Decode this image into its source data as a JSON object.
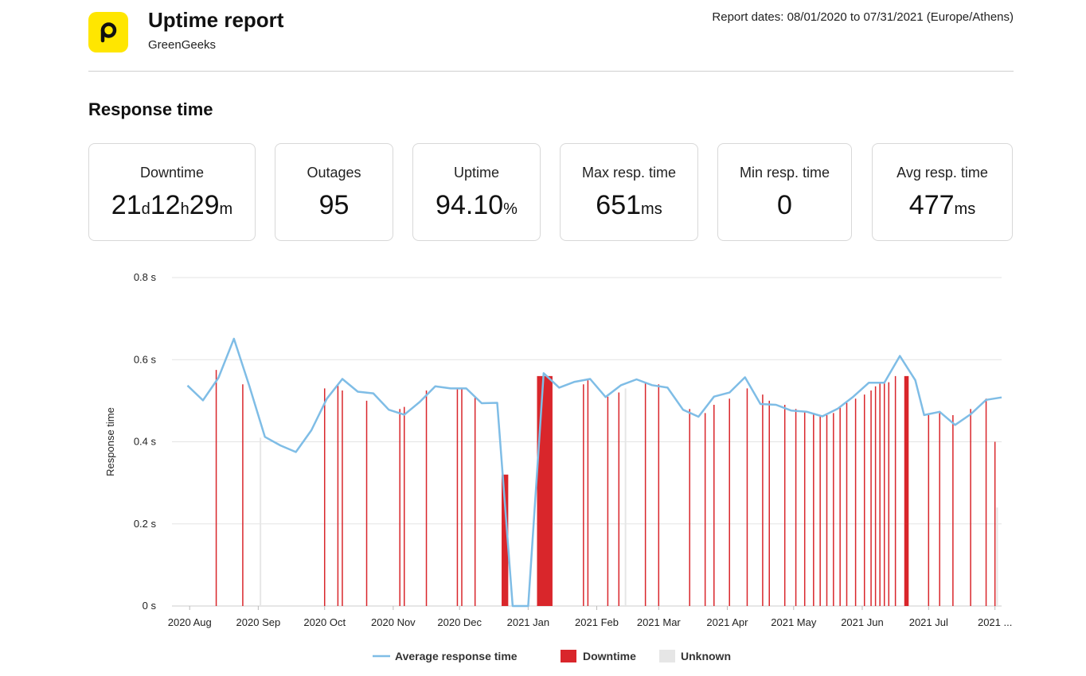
{
  "header": {
    "title": "Uptime report",
    "subtitle": "GreenGeeks",
    "report_dates": "Report dates: 08/01/2020 to 07/31/2021 (Europe/Athens)"
  },
  "section_title": "Response time",
  "logo_icon": "p-logo-icon",
  "colors": {
    "logo_bg": "#ffe600",
    "line": "#7fbde6",
    "downtime": "#d9262b",
    "unknown": "#e6e6e6",
    "grid": "#e3e3e3"
  },
  "stats": {
    "downtime": {
      "label": "Downtime",
      "days": "21",
      "d_unit": "d",
      "hours": "12",
      "h_unit": "h",
      "minutes": "29",
      "m_unit": "m"
    },
    "outages": {
      "label": "Outages",
      "value": "95"
    },
    "uptime": {
      "label": "Uptime",
      "value": "94.10",
      "unit": "%"
    },
    "max_resp": {
      "label": "Max resp. time",
      "value": "651",
      "unit": "ms"
    },
    "min_resp": {
      "label": "Min resp. time",
      "value": "0"
    },
    "avg_resp": {
      "label": "Avg resp. time",
      "value": "477",
      "unit": "ms"
    }
  },
  "chart_data": {
    "type": "line",
    "ylabel": "Response time",
    "ylim": [
      0,
      0.8
    ],
    "y_ticks": [
      {
        "value": 0,
        "label": "0 s"
      },
      {
        "value": 0.2,
        "label": "0.2 s"
      },
      {
        "value": 0.4,
        "label": "0.4 s"
      },
      {
        "value": 0.6,
        "label": "0.6 s"
      },
      {
        "value": 0.8,
        "label": "0.8 s"
      }
    ],
    "x_range": [
      "2020-07-24",
      "2021-08-03"
    ],
    "x_ticks": [
      {
        "date": "2020-08-01",
        "label": "2020 Aug"
      },
      {
        "date": "2020-09-01",
        "label": "2020 Sep"
      },
      {
        "date": "2020-10-01",
        "label": "2020 Oct"
      },
      {
        "date": "2020-11-01",
        "label": "2020 Nov"
      },
      {
        "date": "2020-12-01",
        "label": "2020 Dec"
      },
      {
        "date": "2021-01-01",
        "label": "2021 Jan"
      },
      {
        "date": "2021-02-01",
        "label": "2021 Feb"
      },
      {
        "date": "2021-03-01",
        "label": "2021 Mar"
      },
      {
        "date": "2021-04-01",
        "label": "2021 Apr"
      },
      {
        "date": "2021-05-01",
        "label": "2021 May"
      },
      {
        "date": "2021-06-01",
        "label": "2021 Jun"
      },
      {
        "date": "2021-07-01",
        "label": "2021 Jul"
      },
      {
        "date": "2021-07-31",
        "label": "2021 ..."
      }
    ],
    "grid": true,
    "legend_position": "bottom",
    "legend": [
      "Average response time",
      "Downtime",
      "Unknown"
    ],
    "series": [
      {
        "name": "Average response time",
        "points": [
          [
            "2020-07-31",
            0.537
          ],
          [
            "2020-08-07",
            0.501
          ],
          [
            "2020-08-14",
            0.556
          ],
          [
            "2020-08-21",
            0.651
          ],
          [
            "2020-08-28",
            0.535
          ],
          [
            "2020-09-04",
            0.412
          ],
          [
            "2020-09-11",
            0.391
          ],
          [
            "2020-09-18",
            0.375
          ],
          [
            "2020-09-25",
            0.428
          ],
          [
            "2020-10-02",
            0.505
          ],
          [
            "2020-10-09",
            0.553
          ],
          [
            "2020-10-16",
            0.522
          ],
          [
            "2020-10-23",
            0.518
          ],
          [
            "2020-10-30",
            0.478
          ],
          [
            "2020-11-06",
            0.466
          ],
          [
            "2020-11-13",
            0.497
          ],
          [
            "2020-11-20",
            0.535
          ],
          [
            "2020-11-27",
            0.53
          ],
          [
            "2020-12-04",
            0.53
          ],
          [
            "2020-12-11",
            0.494
          ],
          [
            "2020-12-18",
            0.495
          ],
          [
            "2020-12-25",
            0.0
          ],
          [
            "2021-01-01",
            0.0
          ],
          [
            "2021-01-08",
            0.567
          ],
          [
            "2021-01-15",
            0.532
          ],
          [
            "2021-01-22",
            0.546
          ],
          [
            "2021-01-29",
            0.553
          ],
          [
            "2021-02-05",
            0.509
          ],
          [
            "2021-02-12",
            0.538
          ],
          [
            "2021-02-19",
            0.552
          ],
          [
            "2021-02-26",
            0.538
          ],
          [
            "2021-03-05",
            0.532
          ],
          [
            "2021-03-12",
            0.478
          ],
          [
            "2021-03-19",
            0.461
          ],
          [
            "2021-03-26",
            0.51
          ],
          [
            "2021-04-02",
            0.52
          ],
          [
            "2021-04-09",
            0.557
          ],
          [
            "2021-04-16",
            0.492
          ],
          [
            "2021-04-23",
            0.49
          ],
          [
            "2021-04-30",
            0.476
          ],
          [
            "2021-05-07",
            0.473
          ],
          [
            "2021-05-14",
            0.462
          ],
          [
            "2021-05-21",
            0.481
          ],
          [
            "2021-05-28",
            0.51
          ],
          [
            "2021-06-04",
            0.544
          ],
          [
            "2021-06-11",
            0.544
          ],
          [
            "2021-06-18",
            0.609
          ],
          [
            "2021-06-25",
            0.55
          ],
          [
            "2021-06-29",
            0.465
          ],
          [
            "2021-07-06",
            0.473
          ],
          [
            "2021-07-13",
            0.441
          ],
          [
            "2021-07-20",
            0.467
          ],
          [
            "2021-07-27",
            0.502
          ],
          [
            "2021-08-03",
            0.508
          ]
        ]
      },
      {
        "name": "Downtime",
        "events": [
          {
            "date": "2020-08-13",
            "value": 0.575
          },
          {
            "date": "2020-08-25",
            "value": 0.54
          },
          {
            "date": "2020-10-01",
            "value": 0.53
          },
          {
            "date": "2020-10-07",
            "value": 0.54
          },
          {
            "date": "2020-10-09",
            "value": 0.525
          },
          {
            "date": "2020-10-20",
            "value": 0.5
          },
          {
            "date": "2020-11-04",
            "value": 0.48
          },
          {
            "date": "2020-11-06",
            "value": 0.485
          },
          {
            "date": "2020-11-16",
            "value": 0.525
          },
          {
            "date": "2020-11-30",
            "value": 0.53
          },
          {
            "date": "2020-12-02",
            "value": 0.53
          },
          {
            "date": "2020-12-08",
            "value": 0.51
          },
          {
            "date": "2021-01-26",
            "value": 0.54
          },
          {
            "date": "2021-01-28",
            "value": 0.55
          },
          {
            "date": "2021-02-06",
            "value": 0.51
          },
          {
            "date": "2021-02-11",
            "value": 0.52
          },
          {
            "date": "2021-02-23",
            "value": 0.545
          },
          {
            "date": "2021-03-01",
            "value": 0.54
          },
          {
            "date": "2021-03-15",
            "value": 0.48
          },
          {
            "date": "2021-03-22",
            "value": 0.47
          },
          {
            "date": "2021-03-26",
            "value": 0.49
          },
          {
            "date": "2021-04-02",
            "value": 0.505
          },
          {
            "date": "2021-04-10",
            "value": 0.53
          },
          {
            "date": "2021-04-17",
            "value": 0.515
          },
          {
            "date": "2021-04-20",
            "value": 0.5
          },
          {
            "date": "2021-04-27",
            "value": 0.49
          },
          {
            "date": "2021-05-02",
            "value": 0.48
          },
          {
            "date": "2021-05-06",
            "value": 0.475
          },
          {
            "date": "2021-05-10",
            "value": 0.47
          },
          {
            "date": "2021-05-13",
            "value": 0.465
          },
          {
            "date": "2021-05-16",
            "value": 0.465
          },
          {
            "date": "2021-05-19",
            "value": 0.47
          },
          {
            "date": "2021-05-22",
            "value": 0.485
          },
          {
            "date": "2021-05-25",
            "value": 0.495
          },
          {
            "date": "2021-05-29",
            "value": 0.505
          },
          {
            "date": "2021-06-02",
            "value": 0.515
          },
          {
            "date": "2021-06-05",
            "value": 0.525
          },
          {
            "date": "2021-06-07",
            "value": 0.535
          },
          {
            "date": "2021-06-09",
            "value": 0.545
          },
          {
            "date": "2021-06-11",
            "value": 0.545
          },
          {
            "date": "2021-06-13",
            "value": 0.545
          },
          {
            "date": "2021-06-16",
            "value": 0.56
          },
          {
            "date": "2021-07-01",
            "value": 0.465
          },
          {
            "date": "2021-07-06",
            "value": 0.47
          },
          {
            "date": "2021-07-12",
            "value": 0.465
          },
          {
            "date": "2021-07-20",
            "value": 0.48
          },
          {
            "date": "2021-07-27",
            "value": 0.505
          },
          {
            "date": "2021-07-31",
            "value": 0.4
          }
        ],
        "periods": [
          {
            "start": "2020-12-20",
            "end": "2020-12-23",
            "value": 0.32
          },
          {
            "start": "2021-01-05",
            "end": "2021-01-12",
            "value": 0.56
          },
          {
            "start": "2021-06-20",
            "end": "2021-06-22",
            "value": 0.56
          }
        ]
      },
      {
        "name": "Unknown",
        "events": [
          {
            "date": "2020-09-02",
            "value": 0.41
          },
          {
            "date": "2021-02-14",
            "value": 0.53
          },
          {
            "date": "2021-08-01",
            "value": 0.24
          }
        ]
      }
    ]
  }
}
